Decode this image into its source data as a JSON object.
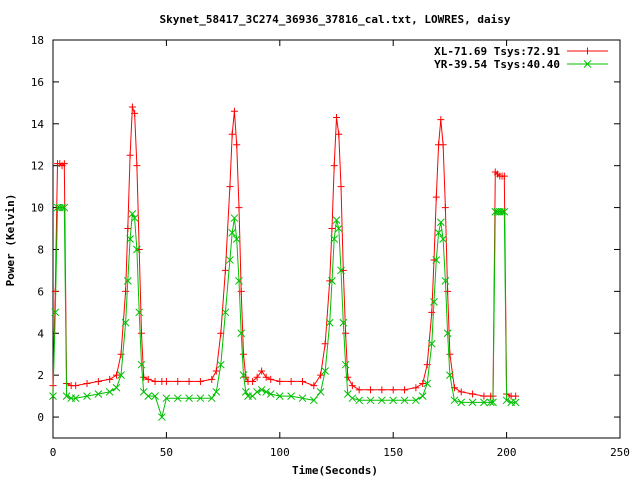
{
  "chart_data": {
    "type": "line",
    "title": "Skynet_58417_3C274_36936_37816_cal.txt, LOWRES, daisy",
    "xlabel": "Time(Seconds)",
    "ylabel": "Power (Kelvin)",
    "xlim": [
      0,
      250
    ],
    "ylim": [
      -1,
      18
    ],
    "xticks": [
      0,
      50,
      100,
      150,
      200,
      250
    ],
    "yticks": [
      0,
      2,
      4,
      6,
      8,
      10,
      12,
      14,
      16,
      18
    ],
    "grid": false,
    "legend_position": "top-right",
    "series": [
      {
        "name": "XL-71.69 Tsys:72.91",
        "color": "#ff0000",
        "marker": "plus",
        "x": [
          0,
          1,
          2,
          3,
          4,
          5,
          6,
          8,
          10,
          15,
          20,
          25,
          28,
          30,
          32,
          33,
          34,
          35,
          36,
          37,
          38,
          39,
          40,
          42,
          45,
          48,
          50,
          55,
          60,
          65,
          70,
          72,
          74,
          76,
          78,
          79,
          80,
          81,
          82,
          83,
          84,
          85,
          86,
          88,
          90,
          92,
          94,
          96,
          100,
          105,
          110,
          115,
          118,
          120,
          122,
          123,
          124,
          125,
          126,
          127,
          128,
          129,
          130,
          132,
          135,
          140,
          145,
          150,
          155,
          160,
          163,
          165,
          167,
          168,
          169,
          170,
          171,
          172,
          173,
          174,
          175,
          177,
          180,
          185,
          190,
          193,
          194,
          195,
          196,
          197,
          198,
          199,
          200,
          202,
          204
        ],
        "y": [
          1.5,
          6.0,
          12.1,
          12.1,
          12.0,
          12.1,
          1.6,
          1.5,
          1.5,
          1.6,
          1.7,
          1.8,
          2.0,
          3.0,
          6.0,
          9.0,
          12.5,
          14.8,
          14.5,
          12.0,
          8.0,
          4.0,
          1.9,
          1.8,
          1.7,
          1.7,
          1.7,
          1.7,
          1.7,
          1.7,
          1.8,
          2.2,
          4.0,
          7.0,
          11.0,
          13.5,
          14.6,
          13.0,
          10.0,
          6.0,
          3.0,
          1.9,
          1.7,
          1.7,
          1.9,
          2.2,
          1.9,
          1.8,
          1.7,
          1.7,
          1.7,
          1.5,
          2.0,
          3.5,
          6.5,
          9.0,
          12.0,
          14.3,
          13.5,
          11.0,
          7.0,
          4.0,
          1.9,
          1.5,
          1.3,
          1.3,
          1.3,
          1.3,
          1.3,
          1.4,
          1.6,
          2.5,
          5.0,
          7.5,
          10.5,
          13.0,
          14.2,
          13.0,
          10.0,
          6.0,
          3.0,
          1.4,
          1.2,
          1.1,
          1.0,
          1.0,
          1.0,
          11.7,
          11.6,
          11.5,
          11.5,
          11.5,
          1.1,
          1.0,
          1.0
        ]
      },
      {
        "name": "YR-39.54 Tsys:40.40",
        "color": "#00c000",
        "marker": "cross",
        "x": [
          0,
          1,
          2,
          3,
          4,
          5,
          6,
          8,
          10,
          15,
          20,
          25,
          28,
          30,
          32,
          33,
          34,
          35,
          36,
          37,
          38,
          39,
          40,
          42,
          45,
          48,
          50,
          55,
          60,
          65,
          70,
          72,
          74,
          76,
          78,
          79,
          80,
          81,
          82,
          83,
          84,
          85,
          86,
          88,
          90,
          92,
          94,
          96,
          100,
          105,
          110,
          115,
          118,
          120,
          122,
          123,
          124,
          125,
          126,
          127,
          128,
          129,
          130,
          132,
          135,
          140,
          145,
          150,
          155,
          160,
          163,
          165,
          167,
          168,
          169,
          170,
          171,
          172,
          173,
          174,
          175,
          177,
          180,
          185,
          190,
          193,
          194,
          195,
          196,
          197,
          198,
          199,
          200,
          202,
          204
        ],
        "y": [
          1.0,
          5.0,
          10.0,
          10.0,
          10.0,
          10.0,
          1.0,
          0.9,
          0.9,
          1.0,
          1.1,
          1.2,
          1.4,
          2.0,
          4.5,
          6.5,
          8.5,
          9.7,
          9.5,
          8.0,
          5.0,
          2.5,
          1.2,
          1.0,
          1.0,
          0.0,
          0.9,
          0.9,
          0.9,
          0.9,
          0.9,
          1.2,
          2.5,
          5.0,
          7.5,
          8.8,
          9.5,
          8.5,
          6.5,
          4.0,
          2.0,
          1.2,
          1.0,
          1.0,
          1.2,
          1.3,
          1.2,
          1.1,
          1.0,
          1.0,
          0.9,
          0.8,
          1.2,
          2.2,
          4.5,
          6.5,
          8.5,
          9.4,
          9.0,
          7.0,
          4.5,
          2.5,
          1.1,
          0.9,
          0.8,
          0.8,
          0.8,
          0.8,
          0.8,
          0.8,
          1.0,
          1.6,
          3.5,
          5.5,
          7.5,
          8.8,
          9.3,
          8.5,
          6.5,
          4.0,
          2.0,
          0.8,
          0.7,
          0.7,
          0.7,
          0.7,
          0.7,
          9.8,
          9.8,
          9.8,
          9.8,
          9.8,
          0.8,
          0.7,
          0.7
        ]
      }
    ]
  }
}
